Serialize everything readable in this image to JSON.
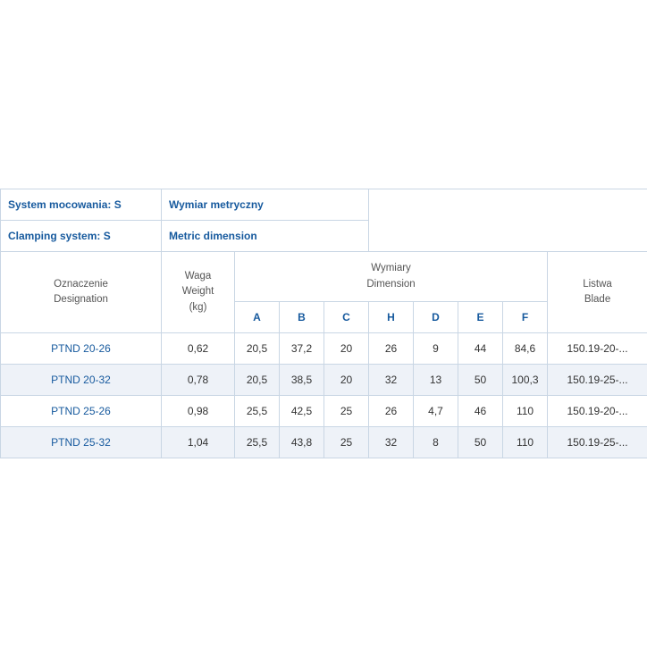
{
  "header": {
    "r1c1_l1": "System mocowania: S",
    "r1c1_l2": "Clamping system: S",
    "r1c2_l1": "Wymiar metryczny",
    "r1c2_l2": "Metric dimension"
  },
  "labels": {
    "designation_l1": "Oznaczenie",
    "designation_l2": "Designation",
    "weight_l1": "Waga",
    "weight_l2": "Weight",
    "weight_l3": "(kg)",
    "dim_group_l1": "Wymiary",
    "dim_group_l2": "Dimension",
    "blade_l1": "Listwa",
    "blade_l2": "Blade",
    "A": "A",
    "B": "B",
    "C": "C",
    "H": "H",
    "D": "D",
    "E": "E",
    "F": "F"
  },
  "rows": [
    {
      "d": "PTND 20-26",
      "w": "0,62",
      "A": "20,5",
      "B": "37,2",
      "C": "20",
      "H": "26",
      "D": "9",
      "E": "44",
      "F": "84,6",
      "blade": "150.19-20-..."
    },
    {
      "d": "PTND 20-32",
      "w": "0,78",
      "A": "20,5",
      "B": "38,5",
      "C": "20",
      "H": "32",
      "D": "13",
      "E": "50",
      "F": "100,3",
      "blade": "150.19-25-..."
    },
    {
      "d": "PTND 25-26",
      "w": "0,98",
      "A": "25,5",
      "B": "42,5",
      "C": "25",
      "H": "26",
      "D": "4,7",
      "E": "46",
      "F": "110",
      "blade": "150.19-20-..."
    },
    {
      "d": "PTND 25-32",
      "w": "1,04",
      "A": "25,5",
      "B": "43,8",
      "C": "25",
      "H": "32",
      "D": "8",
      "E": "50",
      "F": "110",
      "blade": "150.19-25-..."
    }
  ],
  "style": {
    "border_color": "#c9d6e4",
    "header_text_color": "#175a9e",
    "stripe_bg": "#eef2f8"
  }
}
